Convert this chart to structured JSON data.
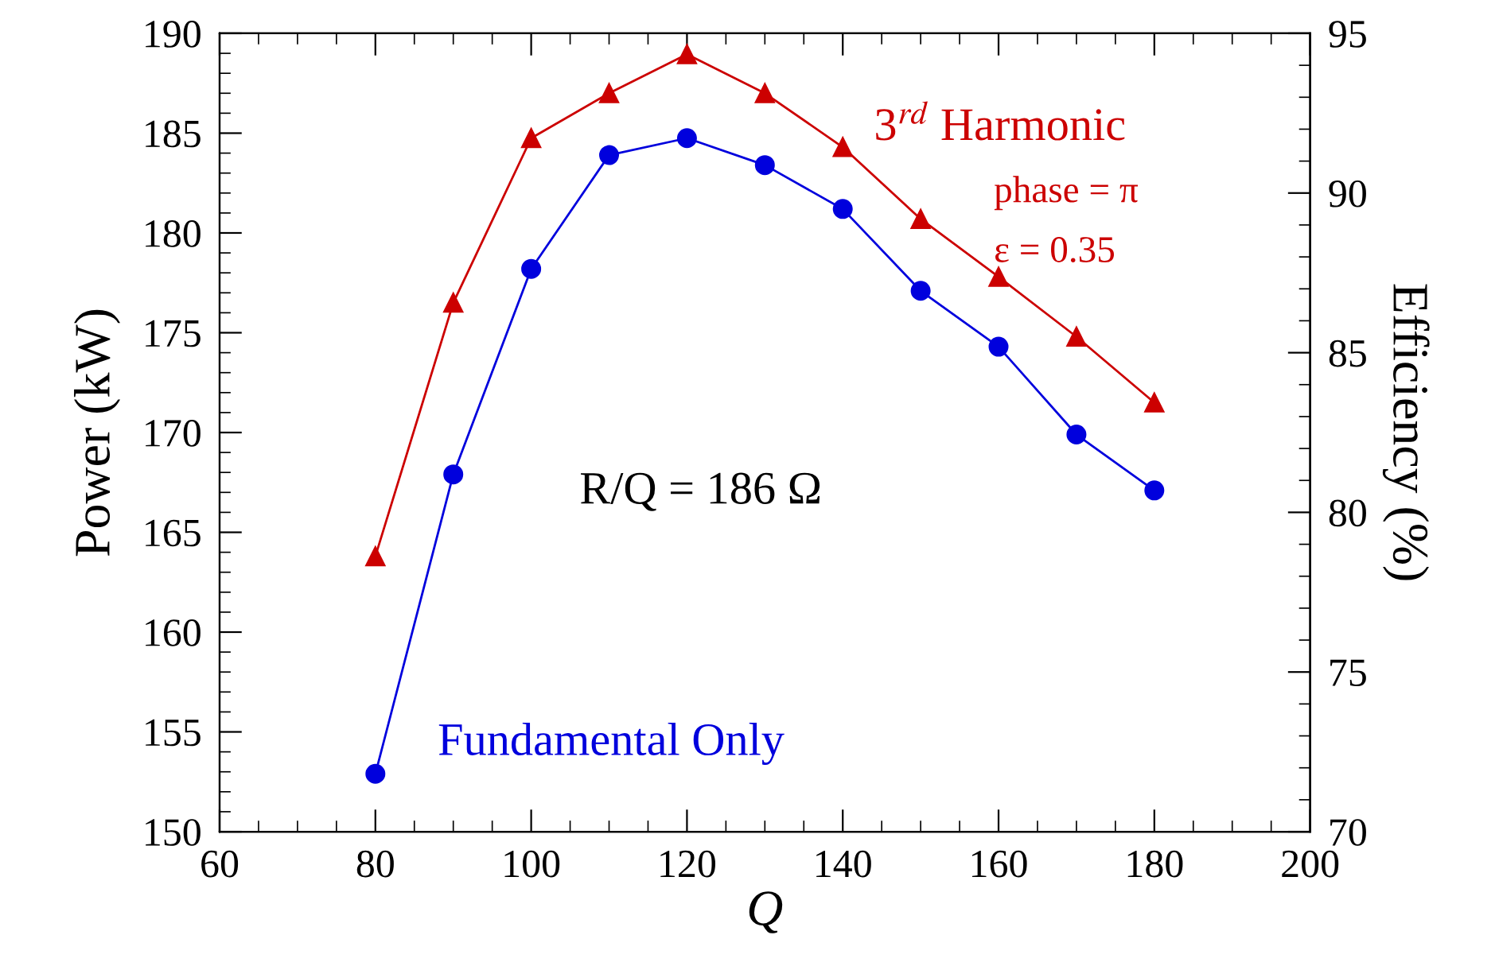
{
  "chart_data": {
    "type": "line",
    "xlabel": "Q",
    "ylabel": "Power (kW)",
    "y2label": "Efficiency (%)",
    "x": [
      80,
      90,
      100,
      110,
      120,
      130,
      140,
      150,
      160,
      170,
      180
    ],
    "series": [
      {
        "name": "3$^{rd}$ Harmonic",
        "color": "#cc0000",
        "marker": "triangle",
        "values": [
          163.8,
          176.5,
          184.75,
          187.0,
          188.95,
          187.0,
          184.3,
          180.7,
          177.8,
          174.8,
          171.5
        ]
      },
      {
        "name": "Fundamental Only",
        "color": "#0000dd",
        "marker": "circle",
        "values": [
          152.9,
          167.9,
          178.2,
          183.9,
          184.75,
          183.4,
          181.2,
          177.1,
          174.3,
          169.9,
          167.1
        ]
      }
    ],
    "annotations": [
      "phase = π",
      "ε = 0.35",
      "R/Q = 186 Ω"
    ],
    "xlim": [
      60,
      200
    ],
    "xticks": [
      60,
      80,
      100,
      120,
      140,
      160,
      180,
      200
    ],
    "ylim": [
      150,
      190
    ],
    "yticks": [
      150,
      155,
      160,
      165,
      170,
      175,
      180,
      185,
      190
    ],
    "y2lim": [
      70,
      95
    ],
    "y2ticks": [
      70,
      75,
      80,
      85,
      90,
      95
    ],
    "grid": false,
    "legend": false,
    "line_style": "solid"
  }
}
